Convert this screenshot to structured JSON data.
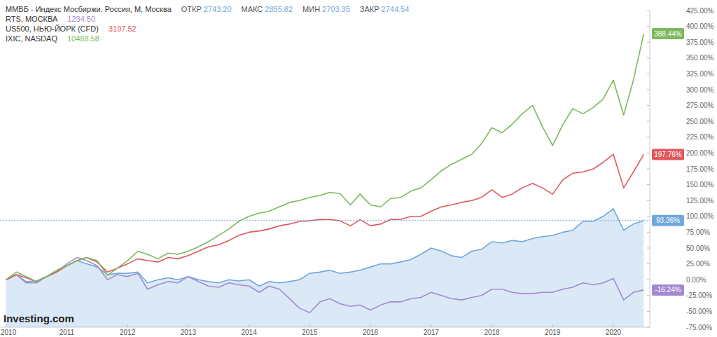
{
  "chart_data": {
    "type": "line",
    "source": "Investing.com",
    "x": [
      2010,
      2010.17,
      2010.33,
      2010.5,
      2010.67,
      2010.83,
      2011,
      2011.17,
      2011.33,
      2011.5,
      2011.67,
      2011.83,
      2012,
      2012.17,
      2012.33,
      2012.5,
      2012.67,
      2012.83,
      2013,
      2013.17,
      2013.33,
      2013.5,
      2013.67,
      2013.83,
      2014,
      2014.17,
      2014.33,
      2014.5,
      2014.67,
      2014.83,
      2015,
      2015.17,
      2015.33,
      2015.5,
      2015.67,
      2015.83,
      2016,
      2016.17,
      2016.33,
      2016.5,
      2016.67,
      2016.83,
      2017,
      2017.17,
      2017.33,
      2017.5,
      2017.67,
      2017.83,
      2018,
      2018.17,
      2018.33,
      2018.5,
      2018.67,
      2018.83,
      2019,
      2019.17,
      2019.33,
      2019.5,
      2019.67,
      2019.83,
      2020,
      2020.17,
      2020.33,
      2020.5
    ],
    "xlim": [
      2009.9,
      2020.6
    ],
    "xticks": [
      2010,
      2011,
      2012,
      2013,
      2014,
      2015,
      2016,
      2017,
      2018,
      2019,
      2020
    ],
    "ylim": [
      -75,
      425
    ],
    "yticks": [
      {
        "value": -75,
        "label": "-75.00%"
      },
      {
        "value": -50,
        "label": "-50.00%"
      },
      {
        "value": -25,
        "label": "-25.00%"
      },
      {
        "value": 0,
        "label": "0.00%"
      },
      {
        "value": 25,
        "label": "25.00%"
      },
      {
        "value": 50,
        "label": "50.00%"
      },
      {
        "value": 75,
        "label": "75.00%"
      },
      {
        "value": 100,
        "label": "100.00%"
      },
      {
        "value": 125,
        "label": "125.00%"
      },
      {
        "value": 150,
        "label": "150.00%"
      },
      {
        "value": 175,
        "label": "175.00%"
      },
      {
        "value": 200,
        "label": "200.00%"
      },
      {
        "value": 225,
        "label": "225.00%"
      },
      {
        "value": 250,
        "label": "250.00%"
      },
      {
        "value": 275,
        "label": "275.00%"
      },
      {
        "value": 300,
        "label": "300.00%"
      },
      {
        "value": 325,
        "label": "325.00%"
      },
      {
        "value": 350,
        "label": "350.00%"
      },
      {
        "value": 375,
        "label": "375.00%"
      },
      {
        "value": 400,
        "label": "400.00%"
      },
      {
        "value": 425,
        "label": "425.00%"
      }
    ],
    "grid": false,
    "legend": "top-left",
    "series": [
      {
        "name": "ММВБ - Индекс Мосбиржи, Россия, М, Москва",
        "color": "#6fa8dc",
        "type": "area",
        "ohlc": [
          {
            "label": "ОТКР",
            "value": "2743.20"
          },
          {
            "label": "МАКС",
            "value": "2855.82"
          },
          {
            "label": "МИН",
            "value": "2703.35"
          },
          {
            "label": "ЗАКР",
            "value": "2744.54"
          }
        ],
        "annotation": "93.36%",
        "values": [
          0,
          8,
          -3,
          -2,
          5,
          12,
          22,
          30,
          25,
          20,
          8,
          10,
          10,
          12,
          -5,
          0,
          3,
          0,
          5,
          0,
          -3,
          -5,
          0,
          -2,
          0,
          -10,
          -3,
          -5,
          -3,
          0,
          10,
          12,
          15,
          10,
          12,
          15,
          20,
          25,
          25,
          28,
          32,
          40,
          50,
          45,
          38,
          35,
          45,
          48,
          60,
          58,
          62,
          60,
          65,
          68,
          70,
          75,
          78,
          92,
          92,
          100,
          112,
          78,
          88,
          93.36
        ]
      },
      {
        "name": "RTS, МОСКВА",
        "color": "#a28ad0",
        "type": "line",
        "quote": "1234.50",
        "annotation": "-16.24%",
        "values": [
          0,
          8,
          -5,
          -5,
          5,
          12,
          25,
          35,
          30,
          22,
          0,
          8,
          5,
          10,
          -15,
          -8,
          -3,
          -5,
          5,
          -3,
          -10,
          -12,
          -5,
          -8,
          -10,
          -20,
          -10,
          -15,
          -30,
          -45,
          -52,
          -35,
          -30,
          -38,
          -42,
          -40,
          -48,
          -40,
          -35,
          -35,
          -30,
          -28,
          -20,
          -25,
          -30,
          -32,
          -28,
          -25,
          -15,
          -15,
          -20,
          -22,
          -22,
          -20,
          -20,
          -15,
          -12,
          -5,
          -8,
          -5,
          2,
          -32,
          -20,
          -16.24
        ]
      },
      {
        "name": "US500, НЬЮ-ЙОРК (CFD)",
        "color": "#e0585d",
        "type": "line",
        "quote": "3197.52",
        "annotation": "197.76%",
        "values": [
          0,
          8,
          3,
          -3,
          5,
          12,
          22,
          30,
          35,
          28,
          12,
          18,
          25,
          33,
          30,
          28,
          35,
          33,
          38,
          45,
          52,
          55,
          62,
          70,
          75,
          77,
          80,
          85,
          88,
          92,
          93,
          95,
          95,
          93,
          85,
          95,
          85,
          88,
          95,
          95,
          100,
          100,
          108,
          115,
          118,
          122,
          125,
          130,
          142,
          130,
          135,
          145,
          152,
          145,
          135,
          158,
          168,
          170,
          175,
          185,
          198,
          145,
          170,
          197.76
        ]
      },
      {
        "name": "IXIC, NASDAQ",
        "color": "#7cb85c",
        "type": "line",
        "quote": "10488.58",
        "annotation": "388.44%",
        "values": [
          0,
          12,
          5,
          -3,
          5,
          15,
          22,
          30,
          35,
          30,
          7,
          18,
          30,
          45,
          40,
          33,
          42,
          40,
          45,
          52,
          60,
          70,
          80,
          92,
          100,
          105,
          108,
          115,
          122,
          125,
          130,
          133,
          138,
          136,
          118,
          135,
          118,
          115,
          128,
          130,
          140,
          145,
          158,
          172,
          182,
          190,
          198,
          215,
          240,
          232,
          245,
          262,
          275,
          242,
          212,
          245,
          270,
          262,
          272,
          285,
          315,
          260,
          315,
          388.44
        ]
      }
    ]
  }
}
